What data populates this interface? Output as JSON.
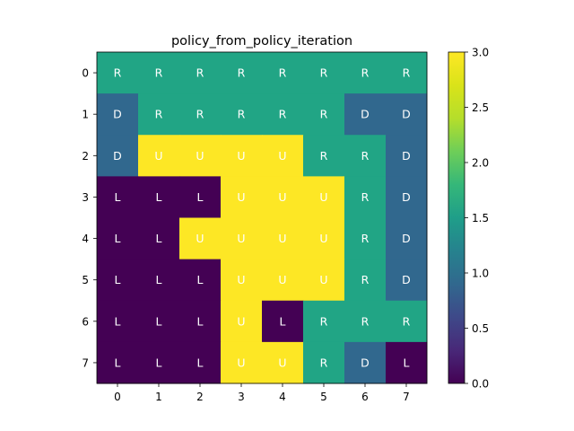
{
  "chart_data": {
    "type": "heatmap",
    "title": "policy_from_policy_iteration",
    "x_ticks": [
      "0",
      "1",
      "2",
      "3",
      "4",
      "5",
      "6",
      "7"
    ],
    "y_ticks": [
      "0",
      "1",
      "2",
      "3",
      "4",
      "5",
      "6",
      "7"
    ],
    "values": [
      [
        2,
        2,
        2,
        2,
        2,
        2,
        2,
        2
      ],
      [
        1,
        2,
        2,
        2,
        2,
        2,
        1,
        1
      ],
      [
        1,
        3,
        3,
        3,
        3,
        2,
        2,
        1
      ],
      [
        0,
        0,
        0,
        3,
        3,
        3,
        2,
        1
      ],
      [
        0,
        0,
        3,
        3,
        3,
        3,
        2,
        1
      ],
      [
        0,
        0,
        0,
        3,
        3,
        3,
        2,
        1
      ],
      [
        0,
        0,
        0,
        3,
        0,
        2,
        2,
        2
      ],
      [
        0,
        0,
        0,
        3,
        3,
        2,
        1,
        0
      ]
    ],
    "labels": [
      [
        "R",
        "R",
        "R",
        "R",
        "R",
        "R",
        "R",
        "R"
      ],
      [
        "D",
        "R",
        "R",
        "R",
        "R",
        "R",
        "D",
        "D"
      ],
      [
        "D",
        "U",
        "U",
        "U",
        "U",
        "R",
        "R",
        "D"
      ],
      [
        "L",
        "L",
        "L",
        "U",
        "U",
        "U",
        "R",
        "D"
      ],
      [
        "L",
        "L",
        "U",
        "U",
        "U",
        "U",
        "R",
        "D"
      ],
      [
        "L",
        "L",
        "L",
        "U",
        "U",
        "U",
        "R",
        "D"
      ],
      [
        "L",
        "L",
        "L",
        "U",
        "L",
        "R",
        "R",
        "R"
      ],
      [
        "L",
        "L",
        "L",
        "U",
        "U",
        "R",
        "D",
        "L"
      ]
    ],
    "colormap": "viridis",
    "vmin": 0.0,
    "vmax": 3.0,
    "colorbar_ticks": [
      "0.0",
      "0.5",
      "1.0",
      "1.5",
      "2.0",
      "2.5",
      "3.0"
    ],
    "colors": {
      "0": "#440154",
      "1": "#31688e",
      "2": "#21a585",
      "3": "#fde725"
    }
  }
}
